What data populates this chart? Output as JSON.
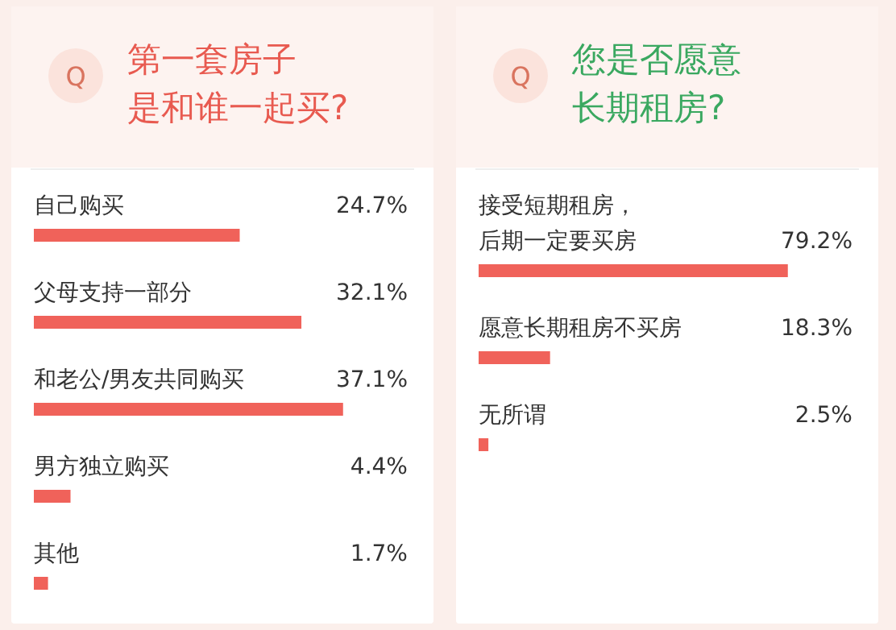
{
  "chart_data": [
    {
      "type": "bar",
      "orientation": "horizontal",
      "title": "第一套房子是和谁一起买?",
      "annotations": [
        "Q"
      ],
      "categories": [
        "自己购买",
        "父母支持一部分",
        "和老公/男友共同购买",
        "男方独立购买",
        "其他"
      ],
      "series": [
        {
          "color": "#f0625a",
          "values": [
            24.7,
            32.1,
            37.1,
            4.4,
            1.7
          ],
          "value_labels": [
            "24.7%",
            "32.1%",
            "37.1%",
            "4.4%",
            "1.7%"
          ]
        }
      ]
    },
    {
      "type": "bar",
      "orientation": "horizontal",
      "title": "您是否愿意长期租房?",
      "annotations": [
        "Q"
      ],
      "categories": [
        "接受短期租房，后期一定要买房",
        "愿意长期租房不买房",
        "无所谓"
      ],
      "series": [
        {
          "color": "#f0625a",
          "values": [
            79.2,
            18.3,
            2.5
          ],
          "value_labels": [
            "79.2%",
            "18.3%",
            "2.5%"
          ]
        }
      ]
    }
  ]
}
